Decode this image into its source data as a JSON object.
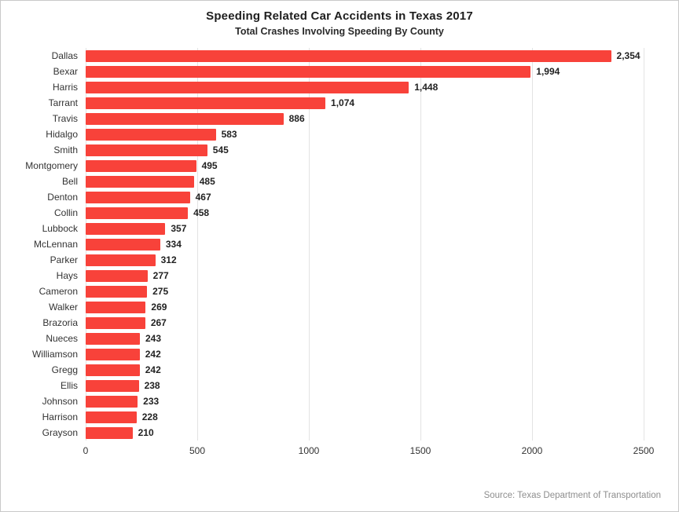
{
  "header": {
    "title": "Speeding Related Car Accidents in Texas 2017",
    "subtitle": "Total Crashes Involving Speeding By County"
  },
  "footer": {
    "source": "Source: Texas Department of Transportation"
  },
  "chart_data": {
    "type": "bar",
    "orientation": "horizontal",
    "title": "Speeding Related Car Accidents in Texas 2017",
    "subtitle": "Total Crashes Involving Speeding By County",
    "xlabel": "",
    "ylabel": "",
    "xlim": [
      0,
      2500
    ],
    "xticks": [
      0,
      500,
      1000,
      1500,
      2000,
      2500
    ],
    "grid": "vertical",
    "legend": "none",
    "bar_color": "#f8423a",
    "categories": [
      "Dallas",
      "Bexar",
      "Harris",
      "Tarrant",
      "Travis",
      "Hidalgo",
      "Smith",
      "Montgomery",
      "Bell",
      "Denton",
      "Collin",
      "Lubbock",
      "McLennan",
      "Parker",
      "Hays",
      "Cameron",
      "Walker",
      "Brazoria",
      "Nueces",
      "Williamson",
      "Gregg",
      "Ellis",
      "Johnson",
      "Harrison",
      "Grayson"
    ],
    "values": [
      2354,
      1994,
      1448,
      1074,
      886,
      583,
      545,
      495,
      485,
      467,
      458,
      357,
      334,
      312,
      277,
      275,
      269,
      267,
      243,
      242,
      242,
      238,
      233,
      228,
      210
    ],
    "value_labels": [
      "2,354",
      "1,994",
      "1,448",
      "1,074",
      "886",
      "583",
      "545",
      "495",
      "485",
      "467",
      "458",
      "357",
      "334",
      "312",
      "277",
      "275",
      "269",
      "267",
      "243",
      "242",
      "242",
      "238",
      "233",
      "228",
      "210"
    ]
  }
}
